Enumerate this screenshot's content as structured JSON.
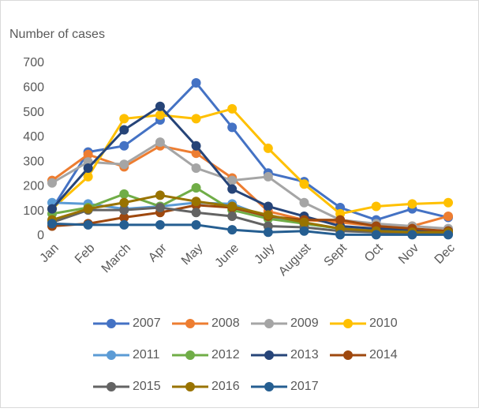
{
  "chart_data": {
    "type": "line",
    "title": "Number of cases",
    "categories": [
      "Jan",
      "Feb",
      "March",
      "Apr",
      "May",
      "June",
      "July",
      "August",
      "Sept",
      "Oct",
      "Nov",
      "Dec"
    ],
    "ylim": [
      0,
      700
    ],
    "yticks": [
      0,
      100,
      200,
      300,
      400,
      500,
      600,
      700
    ],
    "grid": false,
    "series": [
      {
        "name": "2007",
        "color": "#4472c4",
        "values": [
          110,
          340,
          365,
          470,
          620,
          440,
          255,
          220,
          115,
          65,
          110,
          75
        ]
      },
      {
        "name": "2008",
        "color": "#ed7d31",
        "values": [
          225,
          330,
          280,
          365,
          335,
          235,
          100,
          65,
          55,
          40,
          40,
          80
        ]
      },
      {
        "name": "2009",
        "color": "#a5a5a5",
        "values": [
          215,
          300,
          290,
          380,
          275,
          225,
          240,
          135,
          65,
          50,
          40,
          30
        ]
      },
      {
        "name": "2010",
        "color": "#ffc000",
        "values": [
          110,
          240,
          475,
          490,
          475,
          515,
          355,
          210,
          90,
          120,
          130,
          135
        ]
      },
      {
        "name": "2011",
        "color": "#5b9bd5",
        "values": [
          135,
          130,
          110,
          120,
          135,
          130,
          75,
          50,
          30,
          25,
          20,
          20
        ]
      },
      {
        "name": "2012",
        "color": "#70ad47",
        "values": [
          90,
          115,
          170,
          120,
          195,
          105,
          70,
          50,
          30,
          20,
          20,
          20
        ]
      },
      {
        "name": "2013",
        "color": "#264478",
        "values": [
          110,
          275,
          430,
          525,
          365,
          190,
          120,
          80,
          40,
          30,
          25,
          20
        ]
      },
      {
        "name": "2014",
        "color": "#9e480e",
        "values": [
          40,
          50,
          75,
          95,
          125,
          115,
          80,
          65,
          65,
          40,
          30,
          20
        ]
      },
      {
        "name": "2015",
        "color": "#636363",
        "values": [
          55,
          105,
          105,
          115,
          95,
          80,
          40,
          35,
          20,
          15,
          10,
          10
        ]
      },
      {
        "name": "2016",
        "color": "#997300",
        "values": [
          65,
          110,
          135,
          165,
          140,
          120,
          85,
          55,
          30,
          20,
          15,
          15
        ]
      },
      {
        "name": "2017",
        "color": "#255e91",
        "values": [
          50,
          45,
          45,
          45,
          45,
          25,
          15,
          20,
          5,
          5,
          5,
          5
        ]
      }
    ]
  }
}
